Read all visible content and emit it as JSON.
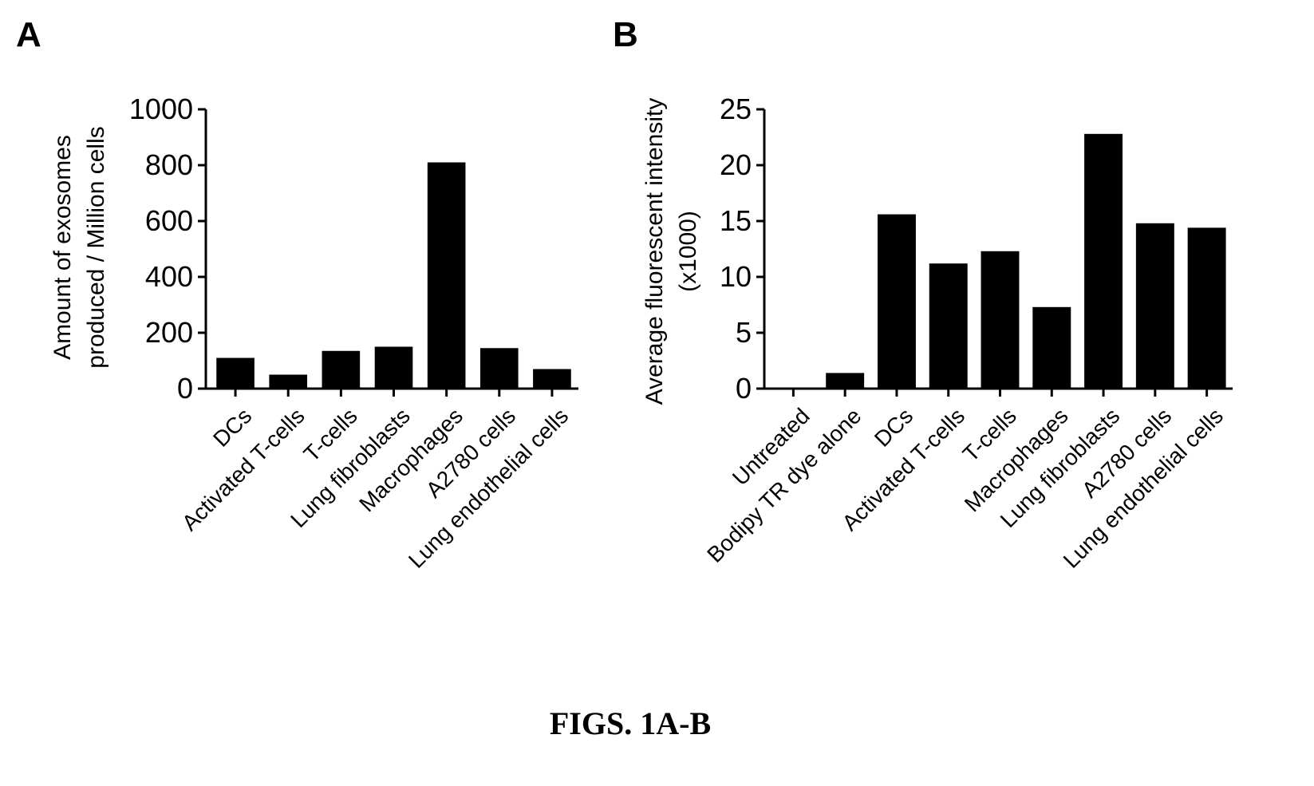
{
  "figure_caption": "FIGS. 1A-B",
  "colors": {
    "bar": "#000000",
    "axis": "#000000",
    "background": "#ffffff"
  },
  "chart_data": [
    {
      "panel_label": "A",
      "type": "bar",
      "title": "",
      "xlabel": "",
      "ylabel": "Amount of exosomes produced / Million cells",
      "ylabel_lines": [
        "Amount of exosomes",
        "produced / Million cells"
      ],
      "ylim": [
        0,
        1000
      ],
      "yticks": [
        0,
        200,
        400,
        600,
        800,
        1000
      ],
      "grid": false,
      "categories": [
        "DCs",
        "Activated T-cells",
        "T-cells",
        "Lung fibroblasts",
        "Macrophages",
        "A2780 cells",
        "Lung endothelial cells"
      ],
      "values": [
        110,
        50,
        135,
        150,
        810,
        145,
        70
      ]
    },
    {
      "panel_label": "B",
      "type": "bar",
      "title": "",
      "xlabel": "",
      "ylabel": "Average fluorescent intensity (x1000)",
      "ylabel_lines": [
        "Average fluorescent intensity",
        "(x1000)"
      ],
      "ylim": [
        0,
        25
      ],
      "yticks": [
        0,
        5,
        10,
        15,
        20,
        25
      ],
      "grid": false,
      "categories": [
        "Untreated",
        "Bodipy TR dye alone",
        "DCs",
        "Activated T-cells",
        "T-cells",
        "Macrophages",
        "Lung fibroblasts",
        "A2780 cells",
        "Lung endothelial cells"
      ],
      "values": [
        0,
        1.4,
        15.6,
        11.2,
        12.3,
        7.3,
        22.8,
        14.8,
        14.4
      ]
    }
  ]
}
